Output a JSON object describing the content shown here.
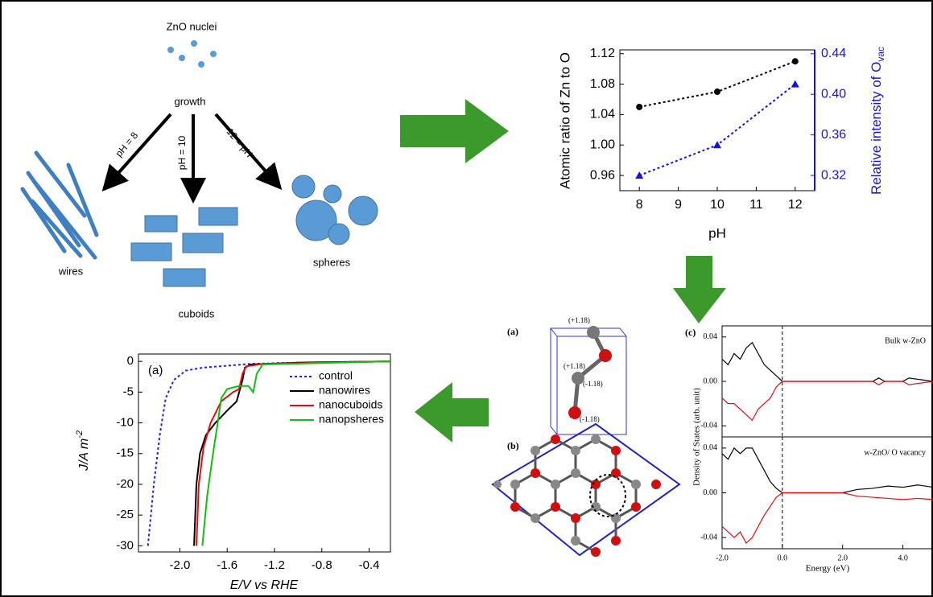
{
  "chart_data": [
    {
      "type": "line",
      "x": [
        8,
        10,
        12
      ],
      "xlabel": "pH",
      "ylabel": "Atomic ratio of Zn to O",
      "y2label": "Relative intensity of O",
      "y2label_subscript": "vac",
      "xlim": [
        7.5,
        12.5
      ],
      "xticks": [
        8,
        9,
        10,
        11,
        12
      ],
      "ylim": [
        0.94,
        1.125
      ],
      "yticks": [
        0.96,
        1.04,
        1.08,
        1.12,
        {
          "value": 1,
          "label": "1.00"
        }
      ],
      "y2lim": [
        0.305,
        0.44375
      ],
      "y2ticks": [
        0.32,
        0.36,
        {
          "value": 0.4,
          "label": "0.40"
        },
        0.44
      ],
      "series": [
        {
          "color": "#000000",
          "marker": "circle",
          "linestyle": "dotted",
          "values": [
            1.05,
            1.07,
            1.11
          ]
        },
        {
          "color": "#1414d2",
          "marker": "triangle",
          "linestyle": "dotted",
          "axis": "y2",
          "values": [
            0.32,
            0.35,
            0.41
          ]
        }
      ]
    },
    {
      "type": "line",
      "panel_label": "(a)",
      "xlabel": "E/V vs RHE",
      "ylabel": "J/A m",
      "ylabel_superscript": "-2",
      "xlim": [
        -2.35,
        -0.22
      ],
      "xticks": [
        {
          "value": -2,
          "label": "-2.0"
        },
        {
          "value": -1.6,
          "label": "-1.6"
        },
        {
          "value": -1.2,
          "label": "-1.2"
        },
        {
          "value": -0.8,
          "label": "-0.8"
        },
        {
          "value": -0.4,
          "label": "-0.4"
        }
      ],
      "ylim": [
        -31,
        1.2
      ],
      "yticks": [
        0,
        -5,
        -10,
        -15,
        -20,
        -25,
        -30
      ],
      "legend": "upper right",
      "series": [
        {
          "name": "control",
          "color": "#2020d0",
          "linestyle": "dotted",
          "x": [
            -2.27,
            -2.22,
            -2.17,
            -2.12,
            -2.05,
            -1.95,
            -1.8,
            -1.6,
            -1.4,
            -1.0,
            -0.22
          ],
          "values": [
            -30,
            -20,
            -12,
            -6,
            -3,
            -1.5,
            -1,
            -0.7,
            -0.4,
            -0.2,
            0
          ]
        },
        {
          "name": "nanowires",
          "color": "#000000",
          "linestyle": "solid",
          "x": [
            -1.88,
            -1.86,
            -1.83,
            -1.78,
            -1.7,
            -1.6,
            -1.52,
            -1.47,
            -1.45,
            -1.4,
            -1.0,
            -0.22
          ],
          "values": [
            -30,
            -20,
            -15,
            -12,
            -10,
            -8,
            -6.5,
            -3,
            -1,
            -0.5,
            -0.2,
            0
          ]
        },
        {
          "name": "nanocuboids",
          "color": "#e01010",
          "linestyle": "solid",
          "x": [
            -1.86,
            -1.84,
            -1.8,
            -1.74,
            -1.65,
            -1.55,
            -1.5,
            -1.47,
            -1.44,
            -1.3,
            -0.22
          ],
          "values": [
            -30,
            -20,
            -14,
            -10,
            -6.5,
            -5,
            -4.5,
            -2,
            -0.8,
            -0.4,
            0
          ]
        },
        {
          "name": "nanopsheres",
          "color": "#10c010",
          "linestyle": "solid",
          "x": [
            -1.81,
            -1.77,
            -1.72,
            -1.68,
            -1.65,
            -1.6,
            -1.5,
            -1.42,
            -1.38,
            -1.35,
            -1.3,
            -0.22
          ],
          "values": [
            -30,
            -22,
            -15,
            -10,
            -6,
            -4.5,
            -4,
            -4,
            -5,
            -2,
            -0.5,
            0
          ]
        }
      ]
    },
    {
      "type": "line",
      "annotation": "Bulk w-ZnO",
      "ylabel": "Density of States (arb. unit)",
      "xlim": [
        -2,
        5
      ],
      "ylim": [
        -0.05,
        0.05
      ],
      "yticks": [
        {
          "value": -0.04,
          "label": "-0.04"
        },
        {
          "value": 0,
          "label": "0.00"
        },
        0.04
      ],
      "vline": 0,
      "series": [
        {
          "color": "#000000",
          "x": [
            -2,
            -1.8,
            -1.6,
            -1.4,
            -1.2,
            -1.0,
            -0.8,
            -0.6,
            -0.4,
            -0.2,
            0,
            1,
            2,
            3,
            3.2,
            3.4,
            4,
            4.2,
            5
          ],
          "values": [
            0.02,
            0.015,
            0.025,
            0.02,
            0.03,
            0.035,
            0.025,
            0.015,
            0.01,
            0.005,
            0,
            0,
            0,
            0,
            0.003,
            0,
            0,
            0.003,
            0
          ]
        },
        {
          "color": "#e01010",
          "x": [
            -2,
            -1.8,
            -1.6,
            -1.4,
            -1.2,
            -1.0,
            -0.8,
            -0.6,
            -0.4,
            -0.2,
            0,
            1,
            2,
            3,
            3.2,
            3.4,
            4,
            4.2,
            5
          ],
          "values": [
            -0.015,
            -0.02,
            -0.02,
            -0.025,
            -0.03,
            -0.035,
            -0.025,
            -0.02,
            -0.015,
            -0.005,
            0,
            0,
            0,
            0,
            -0.003,
            0,
            0,
            -0.003,
            0
          ]
        }
      ]
    },
    {
      "type": "line",
      "annotation": "w-ZnO/ O vacancy",
      "xlabel": "Energy (eV)",
      "xlim": [
        -2,
        5
      ],
      "xticks": [
        {
          "value": -2,
          "label": "-2.0"
        },
        {
          "value": 0,
          "label": "0.0"
        },
        {
          "value": 2,
          "label": "2.0"
        },
        {
          "value": 4,
          "label": "4.0"
        }
      ],
      "ylim": [
        -0.05,
        0.05
      ],
      "yticks": [
        {
          "value": -0.04,
          "label": "-0.04"
        },
        {
          "value": 0,
          "label": "0.00"
        },
        0.04
      ],
      "vline": 0,
      "series": [
        {
          "color": "#000000",
          "x": [
            -2,
            -1.8,
            -1.6,
            -1.4,
            -1.2,
            -1.0,
            -0.8,
            -0.6,
            -0.4,
            -0.2,
            0,
            1,
            2,
            2.5,
            3,
            3.5,
            4,
            4.5,
            5
          ],
          "values": [
            0.035,
            0.03,
            0.04,
            0.035,
            0.04,
            0.04,
            0.03,
            0.02,
            0.01,
            0.004,
            0,
            0,
            0,
            0.003,
            0.004,
            0.006,
            0.005,
            0.007,
            0.005
          ]
        },
        {
          "color": "#e01010",
          "x": [
            -2,
            -1.8,
            -1.6,
            -1.4,
            -1.2,
            -1.0,
            -0.8,
            -0.6,
            -0.4,
            -0.2,
            0,
            1,
            2,
            2.5,
            3,
            3.5,
            4,
            4.5,
            5
          ],
          "values": [
            -0.03,
            -0.035,
            -0.04,
            -0.035,
            -0.045,
            -0.04,
            -0.03,
            -0.02,
            -0.012,
            -0.004,
            0,
            0,
            0,
            -0.003,
            -0.004,
            -0.005,
            -0.006,
            -0.005,
            -0.006
          ]
        }
      ]
    }
  ],
  "diagram": {
    "nuclei": "ZnO nuclei",
    "growth": "growth",
    "branches": [
      "pH = 8",
      "pH = 10",
      "12 = pH"
    ],
    "products": [
      "wires",
      "cuboids",
      "spheres"
    ]
  },
  "structure": {
    "labels": [
      "(a)",
      "(b)",
      "(c)"
    ],
    "charges": [
      "(+1.18)",
      "(+1.18)",
      "(-1.18)",
      "(-1.18)"
    ]
  }
}
